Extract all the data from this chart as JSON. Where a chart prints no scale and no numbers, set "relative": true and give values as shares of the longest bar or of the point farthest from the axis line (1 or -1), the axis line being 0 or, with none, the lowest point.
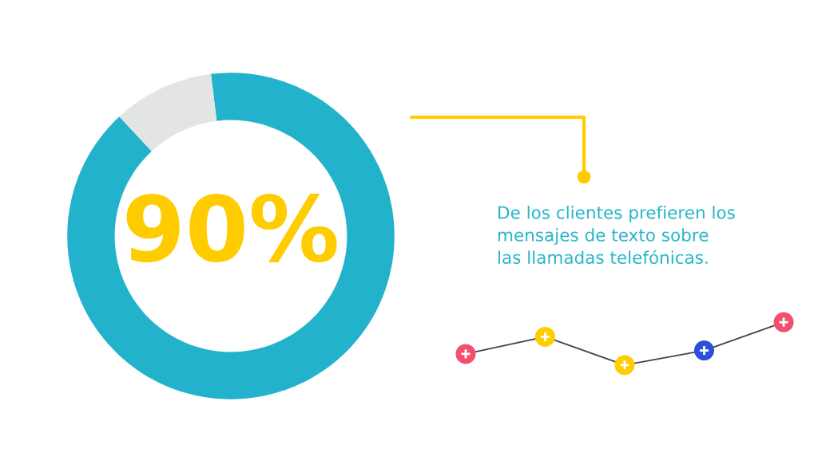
{
  "chart_data": [
    {
      "type": "donut",
      "categories": [
        null,
        null
      ],
      "values": [
        90,
        10
      ],
      "colors": [
        "#23b2cb",
        "#e3e4e4"
      ],
      "value_labels": [
        "90%",
        null
      ],
      "annotations": [
        "De los clientes prefieren los\nmensajes de texto sobre\nlas llamadas telefónicas."
      ]
    },
    {
      "type": "line",
      "relative": true,
      "categories": [
        null,
        null,
        null,
        null,
        null
      ],
      "series": [
        {
          "color": "#444444",
          "values": [
            0.26,
            0.66,
            0,
            0.34,
            1
          ],
          "colors": [
            "#f0506e",
            "#ffcc00",
            "#ffcc00",
            "#2e4fd8",
            "#f0506e"
          ]
        }
      ],
      "marker": "circle"
    }
  ]
}
